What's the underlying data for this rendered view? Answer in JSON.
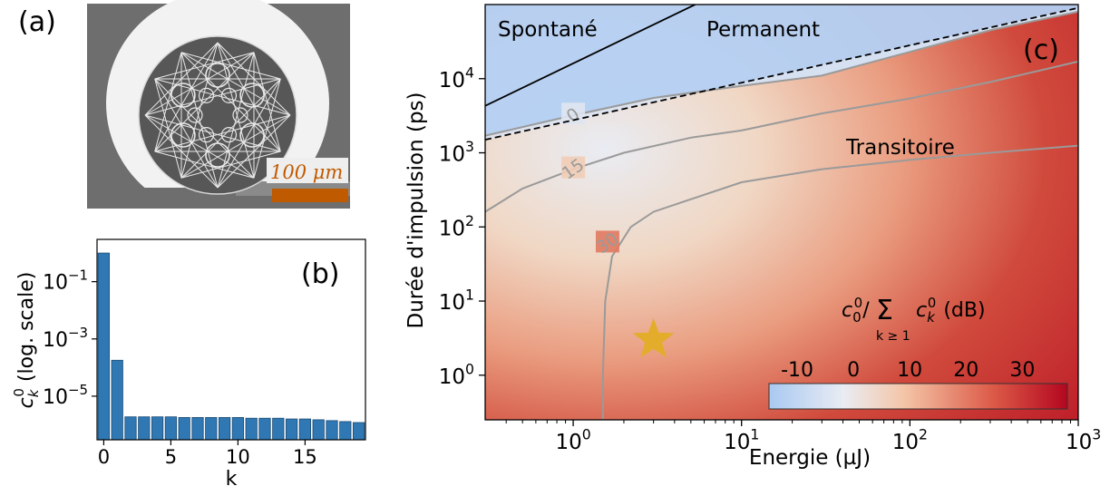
{
  "panels": {
    "a": {
      "label": "(a)",
      "scalebar_text": "100 μm",
      "scalebar_color": "#c05a00"
    },
    "b": {
      "label": "(b)"
    },
    "c": {
      "label": "(c)",
      "region_labels": [
        "Spontané",
        "Permanent",
        "Transitoire"
      ],
      "colorbar": {
        "title": "c₀⁰/ Σ c_k⁰ (dB)",
        "title_parts": {
          "c": "c",
          "sup": "0",
          "sub": "0",
          "slash": "/",
          "sum": "Σ",
          "sum_sub": "k ≥ 1",
          "ck_sub": "k",
          "unit": "(dB)"
        },
        "ticks": [
          "-10",
          "0",
          "10",
          "20",
          "30"
        ],
        "range": [
          -15,
          38
        ],
        "colors": [
          "#a9c9f2",
          "#e9ecf3",
          "#f4c6a8",
          "#dc5a48",
          "#b4061f"
        ]
      },
      "contour_labels": [
        "0",
        "15",
        "30"
      ],
      "star_color": "#e3ad2b"
    }
  },
  "chart_data": [
    {
      "type": "bar",
      "panel": "b",
      "xlabel": "k",
      "ylabel": "c_k^0 (log. scale)",
      "ylabel_parts": {
        "c": "c",
        "sub": "k",
        "sup": "0",
        "rest": " (log. scale)"
      },
      "yscale": "log",
      "x": [
        0,
        1,
        2,
        3,
        4,
        5,
        6,
        7,
        8,
        9,
        10,
        11,
        12,
        13,
        14,
        15,
        16,
        17,
        18,
        19
      ],
      "values": [
        1.0,
        0.00018,
        1.9e-06,
        1.9e-06,
        1.9e-06,
        1.9e-06,
        1.8e-06,
        1.8e-06,
        1.8e-06,
        1.8e-06,
        1.8e-06,
        1.7e-06,
        1.7e-06,
        1.7e-06,
        1.6e-06,
        1.6e-06,
        1.5e-06,
        1.4e-06,
        1.3e-06,
        1.2e-06
      ],
      "xlim": [
        -0.5,
        19.5
      ],
      "ylim": [
        3e-07,
        3
      ],
      "xticks": [
        0,
        5,
        10,
        15
      ],
      "xtick_labels": [
        "0",
        "5",
        "10",
        "15"
      ],
      "yticks": [
        0.1,
        0.001,
        1e-05
      ],
      "ytick_labels": [
        "10⁻¹",
        "10⁻³",
        "10⁻⁵"
      ],
      "ytick_parts": [
        [
          "10",
          "−1"
        ],
        [
          "10",
          "−3"
        ],
        [
          "10",
          "−5"
        ]
      ],
      "color": "#2f78b4"
    },
    {
      "type": "heatmap",
      "panel": "c",
      "xlabel": "Energie (µJ)",
      "ylabel": "Durée d'impulsion (ps)",
      "xscale": "log",
      "yscale": "log",
      "xlim": [
        0.3,
        1000
      ],
      "ylim": [
        0.25,
        100000
      ],
      "xticks": [
        1,
        10,
        100,
        1000
      ],
      "xtick_labels": [
        "10⁰",
        "10¹",
        "10²",
        "10³"
      ],
      "xtick_parts": [
        [
          "10",
          "0"
        ],
        [
          "10",
          "1"
        ],
        [
          "10",
          "2"
        ],
        [
          "10",
          "3"
        ]
      ],
      "yticks": [
        1,
        10,
        100,
        1000,
        10000
      ],
      "ytick_labels": [
        "10⁰",
        "10¹",
        "10²",
        "10³",
        "10⁴"
      ],
      "ytick_parts": [
        [
          "10",
          "0"
        ],
        [
          "10",
          "1"
        ],
        [
          "10",
          "2"
        ],
        [
          "10",
          "3"
        ],
        [
          "10",
          "4"
        ]
      ],
      "contours": [
        {
          "level": 0,
          "points": [
            [
              0.3,
              1700
            ],
            [
              1,
              3200
            ],
            [
              3,
              5500
            ],
            [
              10,
              8000
            ],
            [
              30,
              11000
            ],
            [
              100,
              23000
            ],
            [
              300,
              45000
            ],
            [
              1000,
              80000
            ]
          ]
        },
        {
          "level": 15,
          "points": [
            [
              0.3,
              160
            ],
            [
              0.5,
              330
            ],
            [
              1,
              600
            ],
            [
              2,
              1000
            ],
            [
              5,
              1600
            ],
            [
              10,
              2000
            ],
            [
              30,
              3400
            ],
            [
              100,
              5400
            ],
            [
              300,
              9000
            ],
            [
              1000,
              17000
            ]
          ]
        },
        {
          "level": 30,
          "points": [
            [
              1.5,
              0.25
            ],
            [
              1.5,
              1
            ],
            [
              1.55,
              10
            ],
            [
              1.7,
              40
            ],
            [
              2.2,
              100
            ],
            [
              3,
              160
            ],
            [
              10,
              400
            ],
            [
              30,
              600
            ],
            [
              100,
              800
            ],
            [
              300,
              1000
            ],
            [
              1000,
              1250
            ]
          ]
        }
      ],
      "boundary_lines": [
        {
          "style": "solid",
          "color": "#000000",
          "points": [
            [
              0.3,
              4300
            ],
            [
              10,
              200000
            ]
          ]
        },
        {
          "style": "dashed",
          "color": "#000000",
          "points": [
            [
              0.3,
              1500
            ],
            [
              1000,
              90000
            ]
          ]
        }
      ],
      "star": {
        "x": 3,
        "y": 3
      }
    }
  ]
}
